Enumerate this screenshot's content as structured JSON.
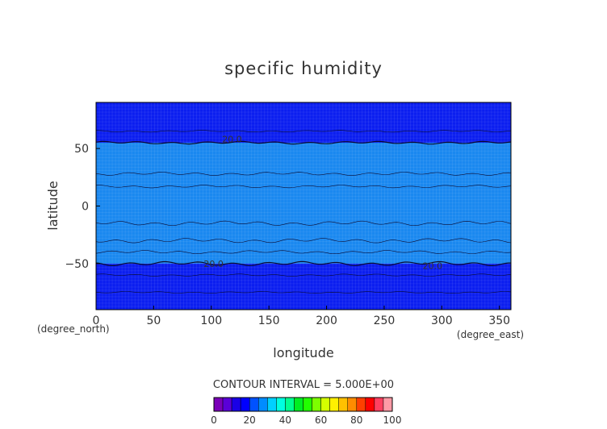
{
  "chart_data": {
    "type": "contour",
    "title": "specific humidity",
    "xlabel": "longitude",
    "ylabel": "latitude",
    "x_unit": "(degree_east)",
    "y_unit": "(degree_north)",
    "xlim": [
      0,
      360
    ],
    "ylim": [
      -90,
      90
    ],
    "x_ticks": [
      "0",
      "50",
      "100",
      "150",
      "200",
      "250",
      "300",
      "350"
    ],
    "y_ticks": [
      "50",
      "0",
      "−50"
    ],
    "contour_interval_text": "CONTOUR INTERVAL = 5.000E+00",
    "contour_labels": [
      "20.0",
      "20.0",
      "20.0"
    ],
    "colorbar_ticks": [
      "0",
      "20",
      "40",
      "60",
      "80",
      "100"
    ],
    "colorbar_levels": [
      0,
      5,
      10,
      15,
      20,
      25,
      30,
      35,
      40,
      45,
      50,
      55,
      60,
      65,
      70,
      75,
      80,
      85,
      90,
      95,
      100
    ],
    "colorbar_colors": [
      "#7a00b8",
      "#5a00d8",
      "#1a00e6",
      "#0000ff",
      "#0052ff",
      "#008cff",
      "#00d0ff",
      "#00ffe0",
      "#00ff90",
      "#00ee22",
      "#22ff00",
      "#7cff00",
      "#d4ff00",
      "#fff000",
      "#ffc000",
      "#ff8c00",
      "#ff4000",
      "#ff0000",
      "#ff4060",
      "#ff9aa6"
    ],
    "field_bands": [
      {
        "lat_from": 90,
        "lat_to": 55,
        "value_range": "10-15",
        "color": "#0b1ef0"
      },
      {
        "lat_from": 55,
        "lat_to": -50,
        "value_range": "15-20",
        "color": "#1a88f0"
      },
      {
        "lat_from": -50,
        "lat_to": -90,
        "value_range": "10-15",
        "color": "#0b1ef0"
      }
    ]
  }
}
